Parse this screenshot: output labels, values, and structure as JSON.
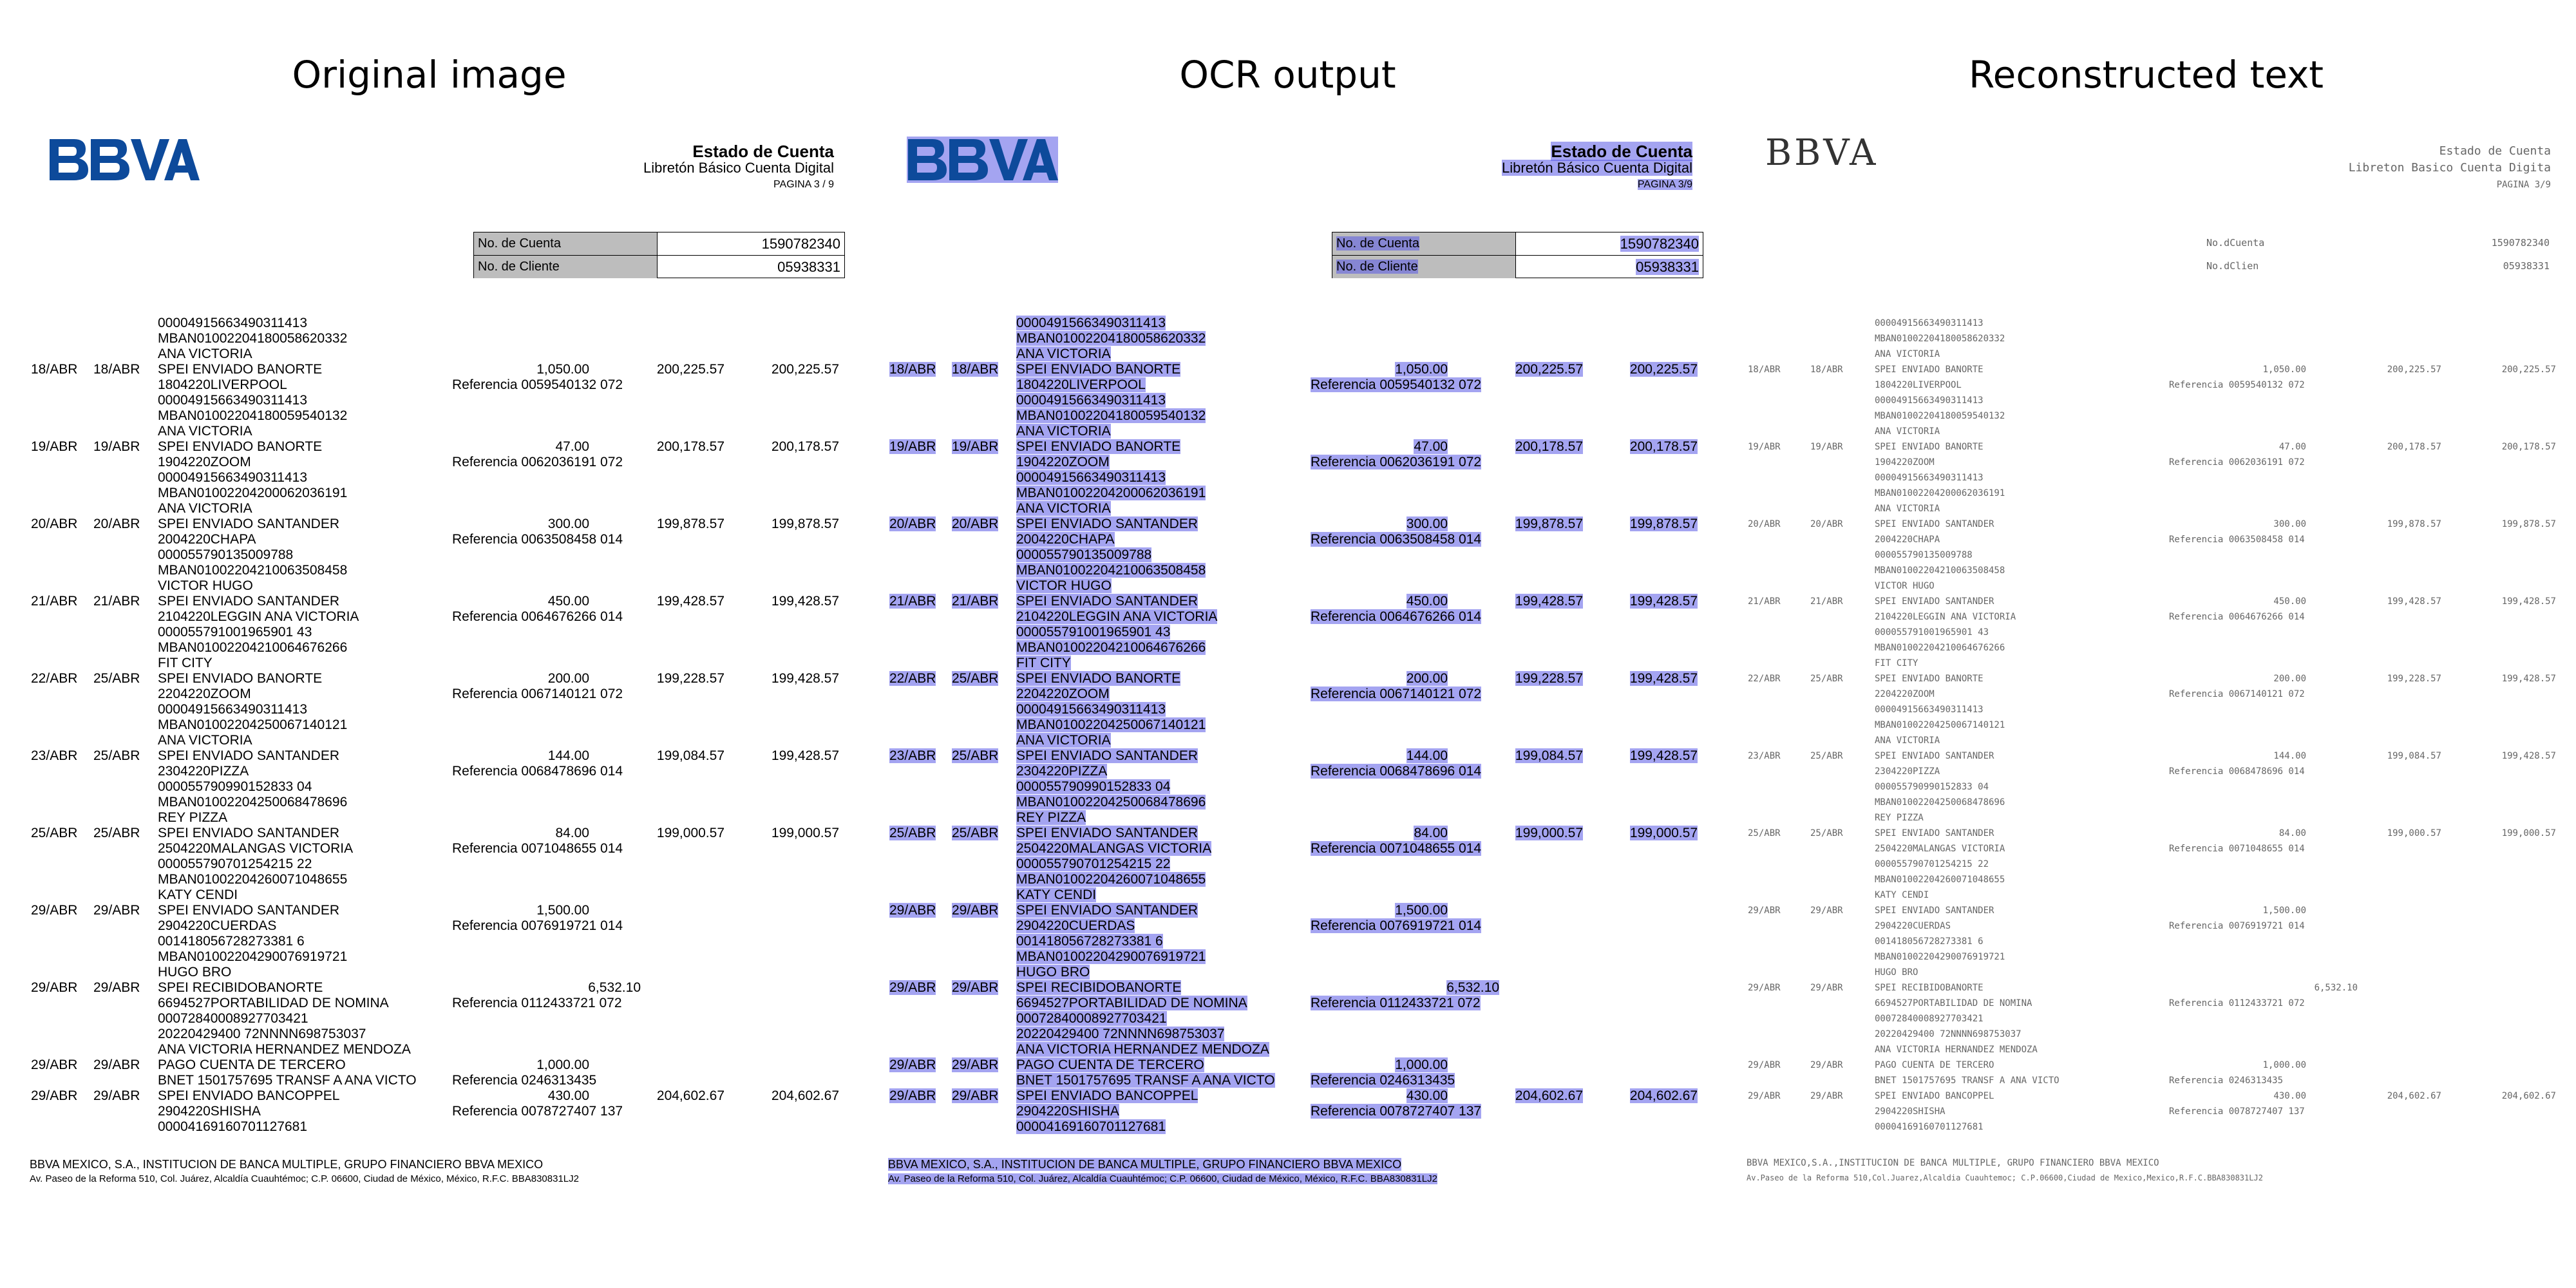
{
  "panel_titles": [
    "Original image",
    "OCR output",
    "Reconstructed text"
  ],
  "doc": {
    "logo": "BBVA",
    "title": "Estado de Cuenta",
    "subtitle": "Libretón Básico Cuenta Digital",
    "page": "PAGINA 3 / 9",
    "ocr_page": "PAGINA 3/9",
    "account_label": "No. de Cuenta",
    "account_value": "1590782340",
    "client_label": "No. de Cliente",
    "client_value": "05938331",
    "footer1": "BBVA MEXICO, S.A., INSTITUCION DE BANCA MULTIPLE, GRUPO FINANCIERO BBVA MEXICO",
    "footer2": "Av. Paseo de la Reforma 510, Col. Juárez, Alcaldía Cuauhtémoc; C.P. 06600, Ciudad de México, México, R.F.C. BBA830831LJ2"
  },
  "lines": [
    {
      "desc": "00004915663490311413"
    },
    {
      "desc": "MBAN01002204180058620332"
    },
    {
      "desc": "ANA VICTORIA"
    },
    {
      "d1": "18/ABR",
      "d2": "18/ABR",
      "desc": "SPEI ENVIADO BANORTE",
      "amt": "1,050.00",
      "bal1": "200,225.57",
      "bal2": "200,225.57"
    },
    {
      "desc": "1804220LIVERPOOL",
      "ref": "Referencia 0059540132 072"
    },
    {
      "desc": "00004915663490311413"
    },
    {
      "desc": "MBAN01002204180059540132"
    },
    {
      "desc": "ANA VICTORIA"
    },
    {
      "d1": "19/ABR",
      "d2": "19/ABR",
      "desc": "SPEI ENVIADO BANORTE",
      "amt": "47.00",
      "bal1": "200,178.57",
      "bal2": "200,178.57"
    },
    {
      "desc": "1904220ZOOM",
      "ref": "Referencia 0062036191 072"
    },
    {
      "desc": "00004915663490311413"
    },
    {
      "desc": "MBAN01002204200062036191"
    },
    {
      "desc": "ANA VICTORIA"
    },
    {
      "d1": "20/ABR",
      "d2": "20/ABR",
      "desc": "SPEI ENVIADO SANTANDER",
      "amt": "300.00",
      "bal1": "199,878.57",
      "bal2": "199,878.57"
    },
    {
      "desc": "2004220CHAPA",
      "ref": "Referencia 0063508458 014"
    },
    {
      "desc": "000055790135009788"
    },
    {
      "desc": "MBAN01002204210063508458"
    },
    {
      "desc": "VICTOR HUGO"
    },
    {
      "d1": "21/ABR",
      "d2": "21/ABR",
      "desc": "SPEI ENVIADO SANTANDER",
      "amt": "450.00",
      "bal1": "199,428.57",
      "bal2": "199,428.57"
    },
    {
      "desc": "2104220LEGGIN ANA VICTORIA",
      "ref": "Referencia 0064676266 014"
    },
    {
      "desc": "000055791001965901 43"
    },
    {
      "desc": "MBAN01002204210064676266"
    },
    {
      "desc": "FIT CITY"
    },
    {
      "d1": "22/ABR",
      "d2": "25/ABR",
      "desc": "SPEI ENVIADO BANORTE",
      "amt": "200.00",
      "bal1": "199,228.57",
      "bal2": "199,428.57"
    },
    {
      "desc": "2204220ZOOM",
      "ref": "Referencia 0067140121 072"
    },
    {
      "desc": "00004915663490311413"
    },
    {
      "desc": "MBAN01002204250067140121"
    },
    {
      "desc": "ANA VICTORIA"
    },
    {
      "d1": "23/ABR",
      "d2": "25/ABR",
      "desc": "SPEI ENVIADO SANTANDER",
      "amt": "144.00",
      "bal1": "199,084.57",
      "bal2": "199,428.57"
    },
    {
      "desc": "2304220PIZZA",
      "ref": "Referencia 0068478696 014"
    },
    {
      "desc": "000055790990152833 04"
    },
    {
      "desc": "MBAN01002204250068478696"
    },
    {
      "desc": "REY PIZZA"
    },
    {
      "d1": "25/ABR",
      "d2": "25/ABR",
      "desc": "SPEI ENVIADO SANTANDER",
      "amt": "84.00",
      "bal1": "199,000.57",
      "bal2": "199,000.57"
    },
    {
      "desc": "2504220MALANGAS VICTORIA",
      "ref": "Referencia 0071048655 014"
    },
    {
      "desc": "000055790701254215 22"
    },
    {
      "desc": "MBAN01002204260071048655"
    },
    {
      "desc": "KATY CENDI"
    },
    {
      "d1": "29/ABR",
      "d2": "29/ABR",
      "desc": "SPEI ENVIADO SANTANDER",
      "amt": "1,500.00"
    },
    {
      "desc": "2904220CUERDAS",
      "ref": "Referencia 0076919721 014"
    },
    {
      "desc": "001418056728273381 6"
    },
    {
      "desc": "MBAN01002204290076919721"
    },
    {
      "desc": "HUGO BRO"
    },
    {
      "d1": "29/ABR",
      "d2": "29/ABR",
      "desc": "SPEI RECIBIDOBANORTE",
      "amt_in": "6,532.10"
    },
    {
      "desc": "6694527PORTABILIDAD DE NOMINA",
      "ref": "Referencia 0112433721 072"
    },
    {
      "desc": "00072840008927703421"
    },
    {
      "desc": "20220429400 72NNNN698753037"
    },
    {
      "desc": "ANA VICTORIA HERNANDEZ MENDOZA"
    },
    {
      "d1": "29/ABR",
      "d2": "29/ABR",
      "desc": "PAGO CUENTA DE TERCERO",
      "amt": "1,000.00"
    },
    {
      "desc": "BNET 1501757695 TRANSF A ANA VICTO",
      "ref": "Referencia 0246313435"
    },
    {
      "d1": "29/ABR",
      "d2": "29/ABR",
      "desc": "SPEI ENVIADO BANCOPPEL",
      "amt": "430.00",
      "bal1": "204,602.67",
      "bal2": "204,602.67"
    },
    {
      "desc": "2904220SHISHA",
      "ref": "Referencia 0078727407 137"
    },
    {
      "desc": "00004169160701127681"
    }
  ],
  "recon": {
    "logo": "BBVA",
    "title": "Estado de Cuenta",
    "subtitle": "Libreton Basico Cuenta Digita",
    "page": "PAGINA 3/9",
    "account_label": "No.dCuenta",
    "account_value": "1590782340",
    "client_label": "No.dClien",
    "client_value": "05938331",
    "footer1": "BBVA MEXICO,S.A.,INSTITUCION DE BANCA MULTIPLE, GRUPO FINANCIERO BBVA MEXICO",
    "footer2": "Av.Paseo de la Reforma 510,Col.Juarez,Alcaldia Cuauhtemoc; C.P.06600,Ciudad de Mexico,Mexico,R.F.C.BBA830831LJ2"
  }
}
